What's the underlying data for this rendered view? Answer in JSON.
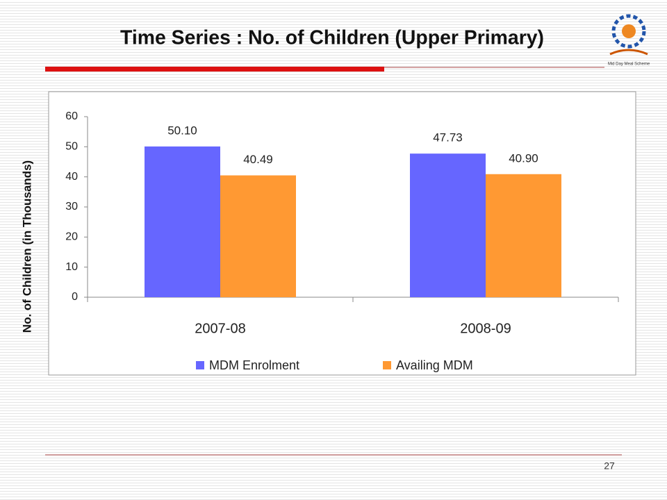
{
  "slide_title": "Time Series : No. of Children (Upper Primary)",
  "logo_text": "Mid Day Meal Scheme",
  "page_number": "27",
  "chart_data": {
    "type": "bar",
    "y_label": "No. of Children (in Thousands)",
    "categories": [
      "2007-08",
      "2008-09"
    ],
    "series": [
      {
        "name": "MDM Enrolment",
        "color": "#6666ff",
        "values": [
          50.1,
          47.73
        ],
        "value_labels": [
          "50.10",
          "47.73"
        ]
      },
      {
        "name": "Availing MDM",
        "color": "#ff9933",
        "values": [
          40.49,
          40.9
        ],
        "value_labels": [
          "40.49",
          "40.90"
        ]
      }
    ],
    "ylim": [
      0,
      60
    ],
    "yticks": [
      0,
      10,
      20,
      30,
      40,
      50,
      60
    ],
    "grid": false,
    "legend": "bottom"
  }
}
